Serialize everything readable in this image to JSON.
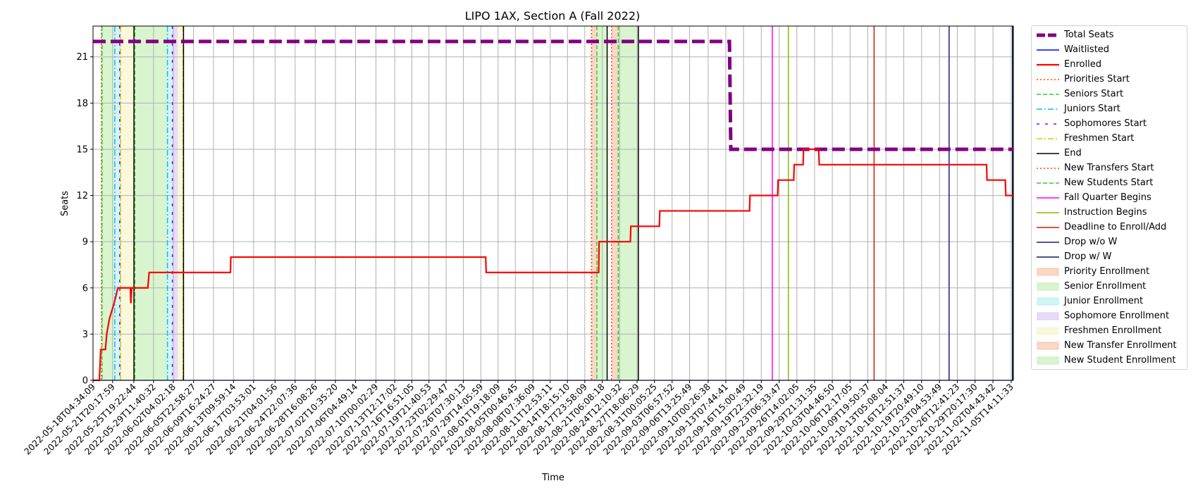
{
  "chart_data": {
    "type": "line",
    "title": "LIPO 1AX, Section A (Fall 2022)",
    "xlabel": "Time",
    "ylabel": "Seats",
    "ylim": [
      0,
      23
    ],
    "xlim": [
      "2022-05-18T04:34:09",
      "2022-11-06T00:00:00"
    ],
    "yticks": [
      0,
      3,
      6,
      9,
      12,
      15,
      18,
      21
    ],
    "xticks": [
      "2022-05-18T04:34:09",
      "2022-05-21T20:17:59",
      "2022-05-25T19:22:44",
      "2022-05-29T11:40:32",
      "2022-06-02T04:02:18",
      "2022-06-05T22:58:27",
      "2022-06-09T16:24:27",
      "2022-06-13T09:59:14",
      "2022-06-17T03:53:01",
      "2022-06-21T04:01:56",
      "2022-06-24T22:07:36",
      "2022-06-28T16:08:26",
      "2022-07-02T10:35:20",
      "2022-07-06T04:49:14",
      "2022-07-10T00:02:29",
      "2022-07-13T12:17:02",
      "2022-07-16T16:51:05",
      "2022-07-19T21:40:53",
      "2022-07-23T02:29:47",
      "2022-07-26T07:30:13",
      "2022-07-29T14:05:59",
      "2022-08-01T19:18:09",
      "2022-08-05T00:46:45",
      "2022-08-08T07:36:09",
      "2022-08-11T12:53:11",
      "2022-08-14T18:15:10",
      "2022-08-17T23:58:09",
      "2022-08-21T06:08:18",
      "2022-08-24T12:10:32",
      "2022-08-27T18:06:29",
      "2022-08-31T00:05:25",
      "2022-09-03T06:57:52",
      "2022-09-06T13:25:49",
      "2022-09-10T00:26:38",
      "2022-09-13T07:44:41",
      "2022-09-16T15:00:49",
      "2022-09-19T22:32:19",
      "2022-09-23T06:33:47",
      "2022-09-26T14:02:05",
      "2022-09-29T21:31:35",
      "2022-10-03T04:46:50",
      "2022-10-06T12:17:05",
      "2022-10-09T19:50:37",
      "2022-10-13T05:08:04",
      "2022-10-16T12:51:37",
      "2022-10-19T20:49:10",
      "2022-10-23T04:53:49",
      "2022-10-26T12:41:23",
      "2022-10-29T20:17:30",
      "2022-11-02T04:43:42",
      "2022-11-05T14:11:33"
    ],
    "grid": true,
    "legend_position": "outside right",
    "series": [
      {
        "name": "Total Seats",
        "color": "#800080",
        "style": "dashed-thick",
        "points": [
          [
            "2022-05-18T04:34:09",
            22
          ],
          [
            "2022-09-14T00:00:00",
            22
          ],
          [
            "2022-09-14T06:00:00",
            15
          ],
          [
            "2022-11-06T00:00:00",
            15
          ]
        ]
      },
      {
        "name": "Waitlisted",
        "color": "#0000ff",
        "style": "solid",
        "points": [
          [
            "2022-05-18T04:34:09",
            0
          ],
          [
            "2022-11-06T00:00:00",
            0
          ]
        ]
      },
      {
        "name": "Enrolled",
        "color": "#ff0000",
        "style": "solid-step",
        "points": [
          [
            "2022-05-18T04:34:09",
            0
          ],
          [
            "2022-05-19T09:00:00",
            0
          ],
          [
            "2022-05-19T15:00:00",
            2
          ],
          [
            "2022-05-20T12:00:00",
            2
          ],
          [
            "2022-05-20T18:00:00",
            3
          ],
          [
            "2022-05-21T06:00:00",
            4
          ],
          [
            "2022-05-22T03:00:00",
            5
          ],
          [
            "2022-05-22T20:00:00",
            6
          ],
          [
            "2022-05-25T04:00:00",
            6
          ],
          [
            "2022-05-25T06:00:00",
            5
          ],
          [
            "2022-05-25T10:00:00",
            6
          ],
          [
            "2022-05-28T10:00:00",
            6
          ],
          [
            "2022-05-28T16:00:00",
            7
          ],
          [
            "2022-06-12T20:00:00",
            7
          ],
          [
            "2022-06-12T22:00:00",
            8
          ],
          [
            "2022-07-30T12:00:00",
            8
          ],
          [
            "2022-07-30T14:00:00",
            7
          ],
          [
            "2022-08-20T14:00:00",
            7
          ],
          [
            "2022-08-20T16:00:00",
            9
          ],
          [
            "2022-08-26T12:00:00",
            9
          ],
          [
            "2022-08-26T14:00:00",
            10
          ],
          [
            "2022-08-31T22:00:00",
            10
          ],
          [
            "2022-09-01T00:00:00",
            11
          ],
          [
            "2022-09-17T18:00:00",
            11
          ],
          [
            "2022-09-17T20:00:00",
            12
          ],
          [
            "2022-09-23T00:00:00",
            12
          ],
          [
            "2022-09-23T02:00:00",
            13
          ],
          [
            "2022-09-26T00:00:00",
            13
          ],
          [
            "2022-09-26T02:00:00",
            14
          ],
          [
            "2022-09-27T18:00:00",
            14
          ],
          [
            "2022-09-27T20:00:00",
            15
          ],
          [
            "2022-09-28T14:00:00",
            15
          ],
          [
            "2022-09-28T16:00:00",
            15
          ],
          [
            "2022-09-30T16:00:00",
            15
          ],
          [
            "2022-09-30T18:00:00",
            14
          ],
          [
            "2022-11-01T00:00:00",
            14
          ],
          [
            "2022-11-01T02:00:00",
            13
          ],
          [
            "2022-11-04T12:00:00",
            13
          ],
          [
            "2022-11-04T14:00:00",
            12
          ],
          [
            "2022-11-06T00:00:00",
            12
          ]
        ]
      }
    ],
    "vertical_lines": [
      {
        "name": "Priorities Start",
        "color": "#ff4500",
        "style": "dotted",
        "x": [
          "2022-05-19T18:00:00",
          "2022-08-19T06:00:00",
          "2022-08-23T00:00:00"
        ]
      },
      {
        "name": "Seniors Start",
        "color": "#32cd32",
        "style": "dashed",
        "x": [
          "2022-05-19T21:00:00",
          "2022-05-26T00:00:00",
          "2022-08-20T06:00:00",
          "2022-08-24T06:00:00"
        ]
      },
      {
        "name": "Juniors Start",
        "color": "#00bfff",
        "style": "dashdot",
        "x": [
          "2022-05-22T06:00:00",
          "2022-06-01T02:00:00"
        ]
      },
      {
        "name": "Sophomores Start",
        "color": "#6a0dff",
        "style": "densedash",
        "x": [
          "2022-05-23T04:00:00",
          "2022-06-02T00:00:00"
        ]
      },
      {
        "name": "Freshmen Start",
        "color": "#cccc00",
        "style": "dashdot",
        "x": [
          "2022-05-23T08:00:00",
          "2022-06-04T00:00:00"
        ]
      },
      {
        "name": "End",
        "color": "#000000",
        "style": "solid",
        "x": [
          "2022-05-25T20:00:00",
          "2022-06-04T02:00:00",
          "2022-08-22T04:00:00",
          "2022-08-28T00:00:00"
        ]
      },
      {
        "name": "New Transfers Start",
        "color": "#ff4500",
        "style": "dotted",
        "x": [
          "2022-08-19T06:00:00"
        ]
      },
      {
        "name": "New Students Start",
        "color": "#32cd32",
        "style": "dashed",
        "x": [
          "2022-08-24T06:00:00"
        ]
      },
      {
        "name": "Fall Quarter Begins",
        "color": "#ff00ff",
        "style": "solid",
        "x": [
          "2022-09-22T00:00:00"
        ]
      },
      {
        "name": "Instruction Begins",
        "color": "#80c000",
        "style": "solid",
        "x": [
          "2022-09-25T00:00:00"
        ]
      },
      {
        "name": "Deadline to Enroll/Add",
        "color": "#cc2200",
        "style": "solid",
        "x": [
          "2022-10-11T00:00:00"
        ]
      },
      {
        "name": "Drop w/o W",
        "color": "#1a1a8c",
        "style": "solid",
        "x": [
          "2022-10-25T00:00:00"
        ]
      },
      {
        "name": "Drop w/ W",
        "color": "#0a2050",
        "style": "solid",
        "x": [
          "2022-11-05T20:00:00"
        ]
      }
    ],
    "shaded_regions": [
      {
        "name": "Priority Enrollment",
        "color": "#f4a882",
        "ranges": [
          [
            "2022-05-19T18:00:00",
            "2022-05-19T21:00:00"
          ],
          [
            "2022-08-19T06:00:00",
            "2022-08-20T06:00:00"
          ],
          [
            "2022-08-23T00:00:00",
            "2022-08-24T06:00:00"
          ]
        ]
      },
      {
        "name": "Senior Enrollment",
        "color": "#a8e895",
        "ranges": [
          [
            "2022-05-19T21:00:00",
            "2022-05-22T06:00:00"
          ],
          [
            "2022-05-26T00:00:00",
            "2022-06-01T02:00:00"
          ],
          [
            "2022-08-20T06:00:00",
            "2022-08-22T04:00:00"
          ]
        ]
      },
      {
        "name": "Junior Enrollment",
        "color": "#9ae8ee",
        "ranges": [
          [
            "2022-05-22T06:00:00",
            "2022-05-23T04:00:00"
          ],
          [
            "2022-06-01T02:00:00",
            "2022-06-02T00:00:00"
          ]
        ]
      },
      {
        "name": "Sophomore Enrollment",
        "color": "#c9b2f0",
        "ranges": [
          [
            "2022-05-23T04:00:00",
            "2022-05-23T08:00:00"
          ],
          [
            "2022-06-02T00:00:00",
            "2022-06-03T00:00:00"
          ]
        ]
      },
      {
        "name": "Freshmen Enrollment",
        "color": "#f5f0b0",
        "ranges": [
          [
            "2022-05-23T08:00:00",
            "2022-05-25T20:00:00"
          ],
          [
            "2022-06-03T00:00:00",
            "2022-06-04T02:00:00"
          ]
        ]
      },
      {
        "name": "New Transfer Enrollment",
        "color": "#f4a882",
        "ranges": []
      },
      {
        "name": "New Student Enrollment",
        "color": "#a8e895",
        "ranges": [
          [
            "2022-08-24T06:00:00",
            "2022-08-28T00:00:00"
          ]
        ]
      }
    ],
    "legend": [
      "Total Seats",
      "Waitlisted",
      "Enrolled",
      "Priorities Start",
      "Seniors Start",
      "Juniors Start",
      "Sophomores Start",
      "Freshmen Start",
      "End",
      "New Transfers Start",
      "New Students Start",
      "Fall Quarter Begins",
      "Instruction Begins",
      "Deadline to Enroll/Add",
      "Drop w/o W",
      "Drop w/ W",
      "Priority Enrollment",
      "Senior Enrollment",
      "Junior Enrollment",
      "Sophomore Enrollment",
      "Freshmen Enrollment",
      "New Transfer Enrollment",
      "New Student Enrollment"
    ]
  }
}
